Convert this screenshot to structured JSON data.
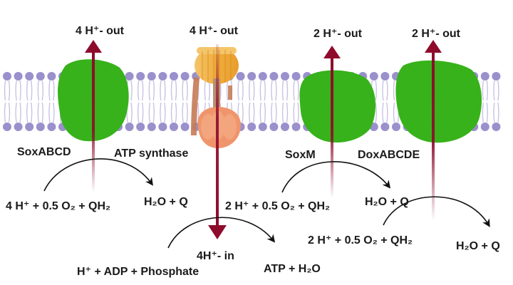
{
  "colors": {
    "membrane_head": "#9a90cc",
    "membrane_tail": "#c9c3e3",
    "protein_green": "#37b21a",
    "arrow_red": "#8e0b2c",
    "arrow_fade": "#e9c9d2",
    "reaction_arrow": "#111111",
    "synthase_head": "#f0b54a",
    "synthase_body": "#f0956b",
    "synthase_stalk": "#c77b56"
  },
  "proton_labels": {
    "soxabcd_out": "4 H⁺- out",
    "atp_synthase_out": "4 H⁺- out",
    "soxm_out": "2 H⁺- out",
    "doxabcde_out": "2 H⁺- out",
    "atp_synthase_in": "4H⁺- in"
  },
  "complexes": {
    "soxabcd": "SoxABCD",
    "atp_synthase": "ATP synthase",
    "soxm": "SoxM",
    "doxabcde": "DoxABCDE"
  },
  "reactions": {
    "soxabcd_reactants": "4 H⁺ + 0.5 O₂ + QH₂",
    "soxabcd_products": "H₂O + Q",
    "soxm_reactants": "2 H⁺ + 0.5 O₂ + QH₂",
    "soxm_products": "H₂O + Q",
    "doxabcde_reactants": "2 H⁺ + 0.5 O₂ + QH₂",
    "doxabcde_products": "H₂O + Q",
    "atp_reactants": "H⁺ + ADP  +  Phosphate",
    "atp_products": "ATP + H₂O"
  }
}
